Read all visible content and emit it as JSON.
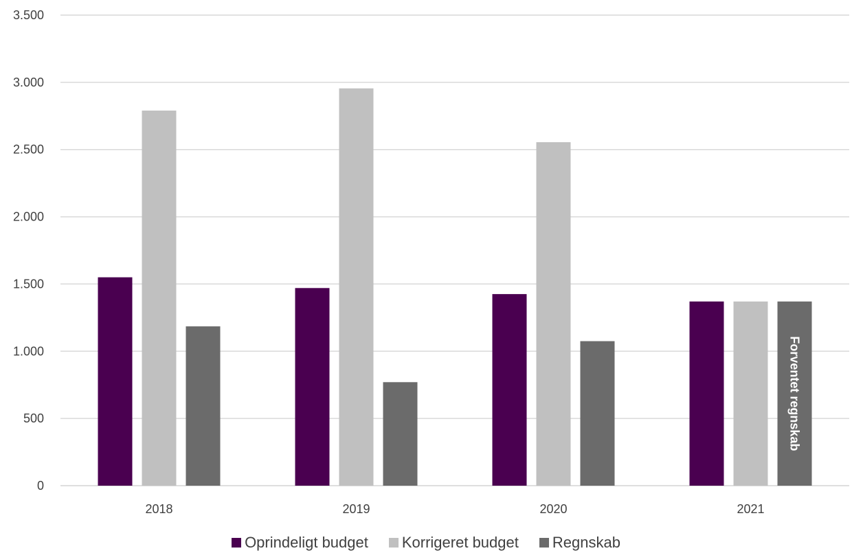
{
  "chart_data": {
    "type": "bar",
    "categories": [
      "2018",
      "2019",
      "2020",
      "2021"
    ],
    "series": [
      {
        "name": "Oprindeligt budget",
        "color": "#4a0050",
        "values": [
          1550,
          1470,
          1425,
          1370
        ]
      },
      {
        "name": "Korrigeret budget",
        "color": "#c0c0c0",
        "values": [
          2790,
          2955,
          2555,
          1370
        ]
      },
      {
        "name": "Regnskab",
        "color": "#6b6b6b",
        "values": [
          1185,
          770,
          1075,
          1370
        ]
      }
    ],
    "ylim": [
      0,
      3500
    ],
    "yticks": [
      0,
      500,
      1000,
      1500,
      2000,
      2500,
      3000,
      3500
    ],
    "ytick_labels": [
      "0",
      "500",
      "1.000",
      "1.500",
      "2.000",
      "2.500",
      "3.000",
      "3.500"
    ],
    "grid": true,
    "legend_position": "bottom",
    "annotations": [
      {
        "text": "Forventet regnskab",
        "series": "Regnskab",
        "category": "2021",
        "orientation": "vertical"
      }
    ]
  },
  "legend": {
    "items": [
      {
        "label": "Oprindeligt budget",
        "color": "#4a0050"
      },
      {
        "label": "Korrigeret budget",
        "color": "#c0c0c0"
      },
      {
        "label": "Regnskab",
        "color": "#6b6b6b"
      }
    ]
  }
}
